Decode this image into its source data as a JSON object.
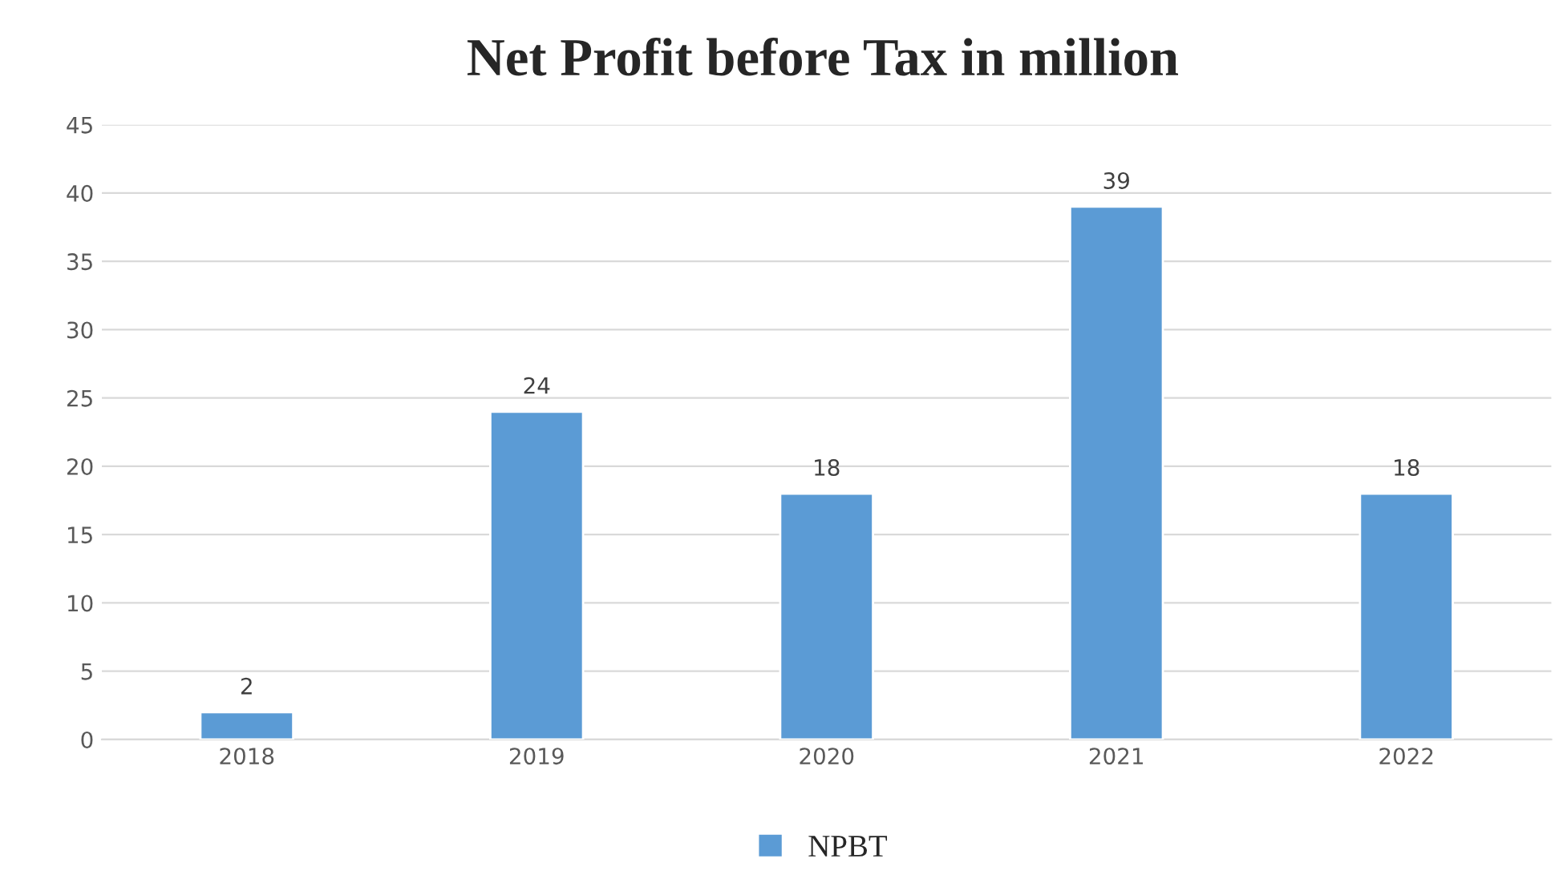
{
  "chart_data": {
    "type": "bar",
    "title": "Net Profit before Tax in million",
    "categories": [
      "2018",
      "2019",
      "2020",
      "2021",
      "2022"
    ],
    "series": [
      {
        "name": "NPBT",
        "color": "#5b9bd5",
        "values": [
          2,
          24,
          18,
          39,
          18
        ]
      }
    ],
    "ylim": [
      0,
      45
    ],
    "yticks": [
      0,
      5,
      10,
      15,
      20,
      25,
      30,
      35,
      40,
      45
    ],
    "grid": "y",
    "legend": "bottom",
    "data_labels": true
  }
}
